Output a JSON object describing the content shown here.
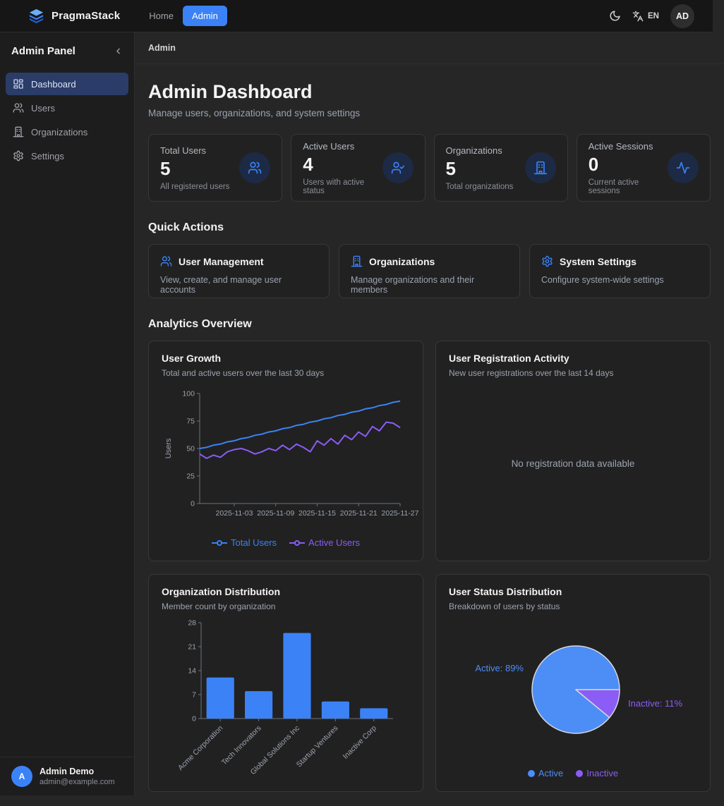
{
  "navbar": {
    "brand": "PragmaStack",
    "links": [
      {
        "label": "Home",
        "active": false
      },
      {
        "label": "Admin",
        "active": true
      }
    ],
    "language": "EN",
    "avatar": "AD"
  },
  "sidebar": {
    "title": "Admin Panel",
    "collapse_icon": "chevron-left",
    "items": [
      {
        "label": "Dashboard",
        "icon": "dashboard-icon",
        "active": true
      },
      {
        "label": "Users",
        "icon": "users-icon",
        "active": false
      },
      {
        "label": "Organizations",
        "icon": "building-icon",
        "active": false
      },
      {
        "label": "Settings",
        "icon": "gear-icon",
        "active": false
      }
    ],
    "user": {
      "name": "Admin Demo",
      "email": "admin@example.com",
      "avatar_initial": "A"
    }
  },
  "breadcrumb": "Admin",
  "header": {
    "title": "Admin Dashboard",
    "subtitle": "Manage users, organizations, and system settings"
  },
  "stats": [
    {
      "label": "Total Users",
      "value": "5",
      "desc": "All registered users",
      "icon": "users-icon"
    },
    {
      "label": "Active Users",
      "value": "4",
      "desc": "Users with active status",
      "icon": "user-check-icon"
    },
    {
      "label": "Organizations",
      "value": "5",
      "desc": "Total organizations",
      "icon": "building-icon"
    },
    {
      "label": "Active Sessions",
      "value": "0",
      "desc": "Current active sessions",
      "icon": "activity-icon"
    }
  ],
  "quick_actions": {
    "heading": "Quick Actions",
    "cards": [
      {
        "title": "User Management",
        "desc": "View, create, and manage user accounts",
        "icon": "users-icon"
      },
      {
        "title": "Organizations",
        "desc": "Manage organizations and their members",
        "icon": "building-icon"
      },
      {
        "title": "System Settings",
        "desc": "Configure system-wide settings",
        "icon": "gear-icon"
      }
    ]
  },
  "analytics": {
    "heading": "Analytics Overview",
    "user_growth": {
      "title": "User Growth",
      "subtitle": "Total and active users over the last 30 days"
    },
    "registration": {
      "title": "User Registration Activity",
      "subtitle": "New user registrations over the last 14 days",
      "empty_message": "No registration data available"
    },
    "org_distribution": {
      "title": "Organization Distribution",
      "subtitle": "Member count by organization"
    },
    "user_status": {
      "title": "User Status Distribution",
      "subtitle": "Breakdown of users by status"
    }
  },
  "colors": {
    "accent_blue": "#3b82f6",
    "purple": "#8b5cf6",
    "pie_blue": "#4d8df6",
    "axis": "#6b7280",
    "tick_text": "#9ca3af"
  },
  "chart_data": [
    {
      "type": "line",
      "title": "User Growth",
      "ylabel": "Users",
      "ylim": [
        0,
        100
      ],
      "yticks": [
        0,
        25,
        50,
        75,
        100
      ],
      "x": [
        "2025-10-29",
        "2025-10-30",
        "2025-10-31",
        "2025-11-01",
        "2025-11-02",
        "2025-11-03",
        "2025-11-04",
        "2025-11-05",
        "2025-11-06",
        "2025-11-07",
        "2025-11-08",
        "2025-11-09",
        "2025-11-10",
        "2025-11-11",
        "2025-11-12",
        "2025-11-13",
        "2025-11-14",
        "2025-11-15",
        "2025-11-16",
        "2025-11-17",
        "2025-11-18",
        "2025-11-19",
        "2025-11-20",
        "2025-11-21",
        "2025-11-22",
        "2025-11-23",
        "2025-11-24",
        "2025-11-25",
        "2025-11-26",
        "2025-11-27"
      ],
      "xtick_indices": [
        5,
        11,
        17,
        23,
        29
      ],
      "series": [
        {
          "name": "Total Users",
          "color": "#3b82f6",
          "values": [
            50,
            51,
            53,
            54,
            56,
            57,
            59,
            60,
            62,
            63,
            65,
            66,
            68,
            69,
            71,
            72,
            74,
            75,
            77,
            78,
            80,
            81,
            83,
            84,
            86,
            87,
            89,
            90,
            92,
            93
          ]
        },
        {
          "name": "Active Users",
          "color": "#8b5cf6",
          "values": [
            45,
            41,
            44,
            42,
            47,
            49,
            50,
            48,
            45,
            47,
            50,
            48,
            53,
            49,
            54,
            51,
            47,
            57,
            53,
            59,
            54,
            62,
            58,
            65,
            61,
            70,
            66,
            74,
            73,
            69
          ]
        }
      ],
      "legend_position": "bottom",
      "grid": false
    },
    {
      "type": "bar",
      "title": "Organization Distribution",
      "categories": [
        "Acme Corporation",
        "Tech Innovators",
        "Global Solutions Inc",
        "Startup Ventures",
        "Inactive Corp"
      ],
      "values": [
        12,
        8,
        25,
        5,
        3
      ],
      "color": "#3b82f6",
      "ylim": [
        0,
        28
      ],
      "yticks": [
        0,
        7,
        14,
        21,
        28
      ],
      "grid": false
    },
    {
      "type": "pie",
      "title": "User Status Distribution",
      "slices": [
        {
          "name": "Active",
          "pct": 89,
          "color": "#4d8df6",
          "label": "Active: 89%"
        },
        {
          "name": "Inactive",
          "pct": 11,
          "color": "#8b5cf6",
          "label": "Inactive: 11%"
        }
      ],
      "legend_position": "bottom"
    }
  ]
}
